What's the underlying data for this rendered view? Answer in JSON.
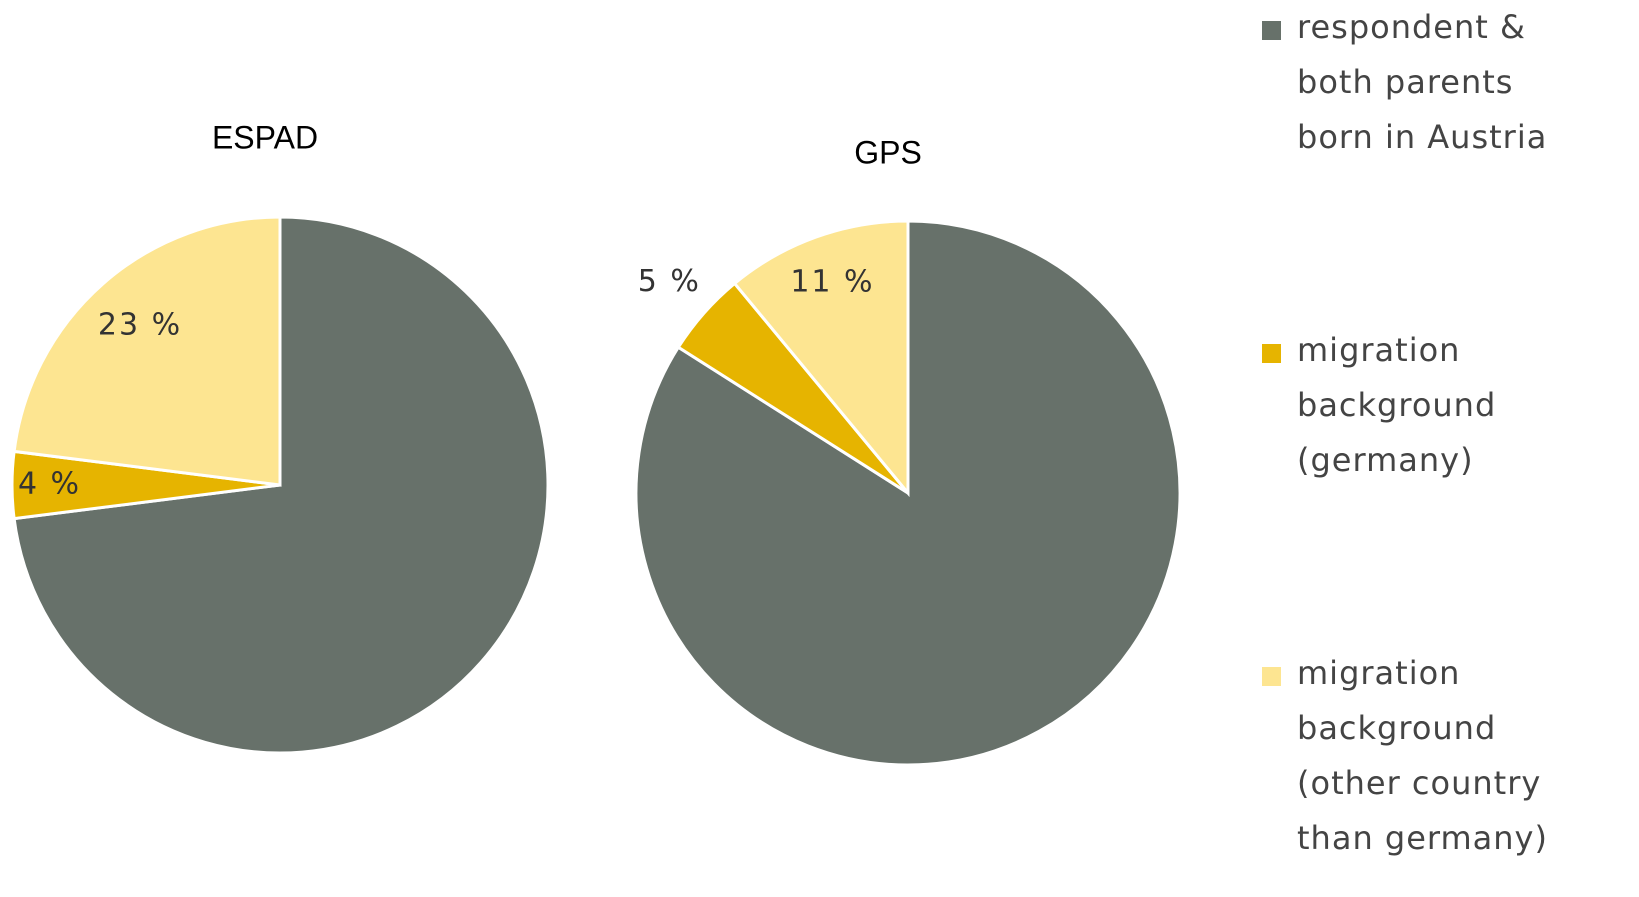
{
  "legend": {
    "categories": [
      "respondent & both parents born in Austria",
      "migration background (germany)",
      "migration background (other country than germany)"
    ],
    "colors": [
      "#67716a",
      "#e6b400",
      "#fde591"
    ]
  },
  "chart_data": [
    {
      "type": "pie",
      "title": "ESPAD",
      "values": [
        73,
        4,
        23
      ],
      "value_labels": [
        null,
        "4 %",
        "23 %"
      ]
    },
    {
      "type": "pie",
      "title": "GPS",
      "values": [
        84,
        5,
        11
      ],
      "value_labels": [
        null,
        "5 %",
        "11 %"
      ]
    }
  ]
}
